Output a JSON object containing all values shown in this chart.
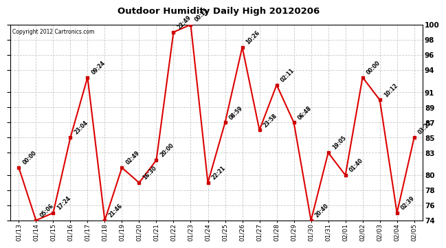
{
  "title": "Outdoor Humidity Daily High 20120206",
  "copyright": "Copyright 2012 Cartronics.com",
  "ylim": [
    74,
    100
  ],
  "yticks": [
    74,
    76,
    78,
    80,
    83,
    85,
    87,
    89,
    91,
    94,
    96,
    98,
    100
  ],
  "background_color": "#ffffff",
  "plot_bg_color": "#ffffff",
  "grid_color": "#c8c8c8",
  "line_color": "#dd0000",
  "marker_color": "#cc0000",
  "points": [
    {
      "date": "01/13",
      "value": 81,
      "label": "00:00"
    },
    {
      "date": "01/14",
      "value": 74,
      "label": "05:06"
    },
    {
      "date": "01/15",
      "value": 75,
      "label": "17:24"
    },
    {
      "date": "01/16",
      "value": 85,
      "label": "23:04"
    },
    {
      "date": "01/17",
      "value": 93,
      "label": "09:24"
    },
    {
      "date": "01/18",
      "value": 74,
      "label": "21:46"
    },
    {
      "date": "01/19",
      "value": 81,
      "label": "02:49"
    },
    {
      "date": "01/20",
      "value": 79,
      "label": "16:30"
    },
    {
      "date": "01/21",
      "value": 82,
      "label": "20:00"
    },
    {
      "date": "01/22",
      "value": 99,
      "label": "22:49"
    },
    {
      "date": "01/23",
      "value": 100,
      "label": "00:25"
    },
    {
      "date": "01/24",
      "value": 79,
      "label": "22:21"
    },
    {
      "date": "01/25",
      "value": 87,
      "label": "08:59"
    },
    {
      "date": "01/26",
      "value": 97,
      "label": "10:26"
    },
    {
      "date": "01/27",
      "value": 86,
      "label": "23:58"
    },
    {
      "date": "01/28",
      "value": 92,
      "label": "02:11"
    },
    {
      "date": "01/29",
      "value": 87,
      "label": "06:48"
    },
    {
      "date": "01/30",
      "value": 74,
      "label": "20:40"
    },
    {
      "date": "01/31",
      "value": 83,
      "label": "19:05"
    },
    {
      "date": "02/01",
      "value": 80,
      "label": "01:40"
    },
    {
      "date": "02/02",
      "value": 93,
      "label": "00:00"
    },
    {
      "date": "02/03",
      "value": 90,
      "label": "10:12"
    },
    {
      "date": "02/04",
      "value": 75,
      "label": "02:39"
    },
    {
      "date": "02/05",
      "value": 85,
      "label": "03:22"
    }
  ]
}
